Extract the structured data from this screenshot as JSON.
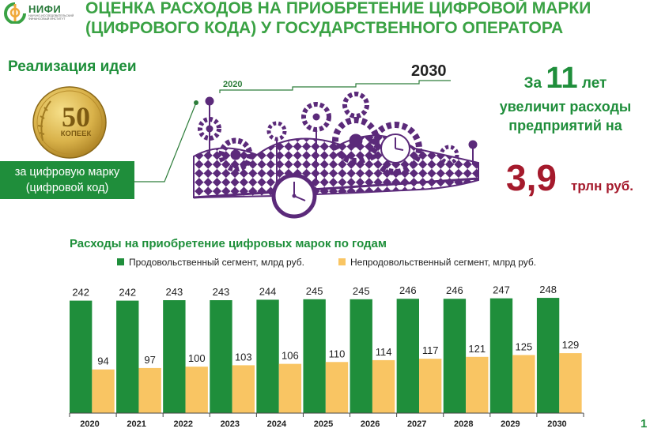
{
  "logo": {
    "name": "НИФИ",
    "subtitle": "Научно-исследовательский финансовый институт",
    "color": "#2a7a3b"
  },
  "title": "ОЦЕНКА РАСХОДОВ НА ПРИОБРЕТЕНИЕ ЦИФРОВОЙ МАРКИ (ЦИФРОВОГО КОДА) У ГОСУДАРСТВЕННОГО ОПЕРАТОРА",
  "idea": {
    "title": "Реализация идеи",
    "coin_value": "50",
    "coin_text": "КОПЕЕК",
    "label": "за цифровую марку (цифровой код)",
    "illustration": "clockwork-gears-illustration"
  },
  "timeline": {
    "start": "2020",
    "end": "2030"
  },
  "stat": {
    "prefix": "За",
    "years": "11",
    "years_suffix": "лет",
    "text": "увеличит расходы предприятий на",
    "value": "3,9",
    "unit": "трлн руб.",
    "color_text": "#1f8e3b",
    "color_value": "#a51a2c"
  },
  "chart_data": {
    "type": "bar",
    "title": "Расходы на приобретение цифровых марок по годам",
    "categories": [
      "2020",
      "2021",
      "2022",
      "2023",
      "2024",
      "2025",
      "2026",
      "2027",
      "2028",
      "2029",
      "2030"
    ],
    "series": [
      {
        "name": "Продовольственный сегмент, млрд руб.",
        "color": "#1f8e3b",
        "values": [
          242,
          242,
          243,
          243,
          244,
          245,
          245,
          246,
          246,
          247,
          248
        ]
      },
      {
        "name": "Непродовольственный сегмент, млрд руб.",
        "color": "#f9c563",
        "values": [
          94,
          97,
          100,
          103,
          106,
          110,
          114,
          117,
          121,
          125,
          129
        ]
      }
    ],
    "ylim": [
      0,
      260
    ],
    "xlabel": "",
    "ylabel": "",
    "grid": false,
    "legend": "top"
  },
  "page_number": "1"
}
